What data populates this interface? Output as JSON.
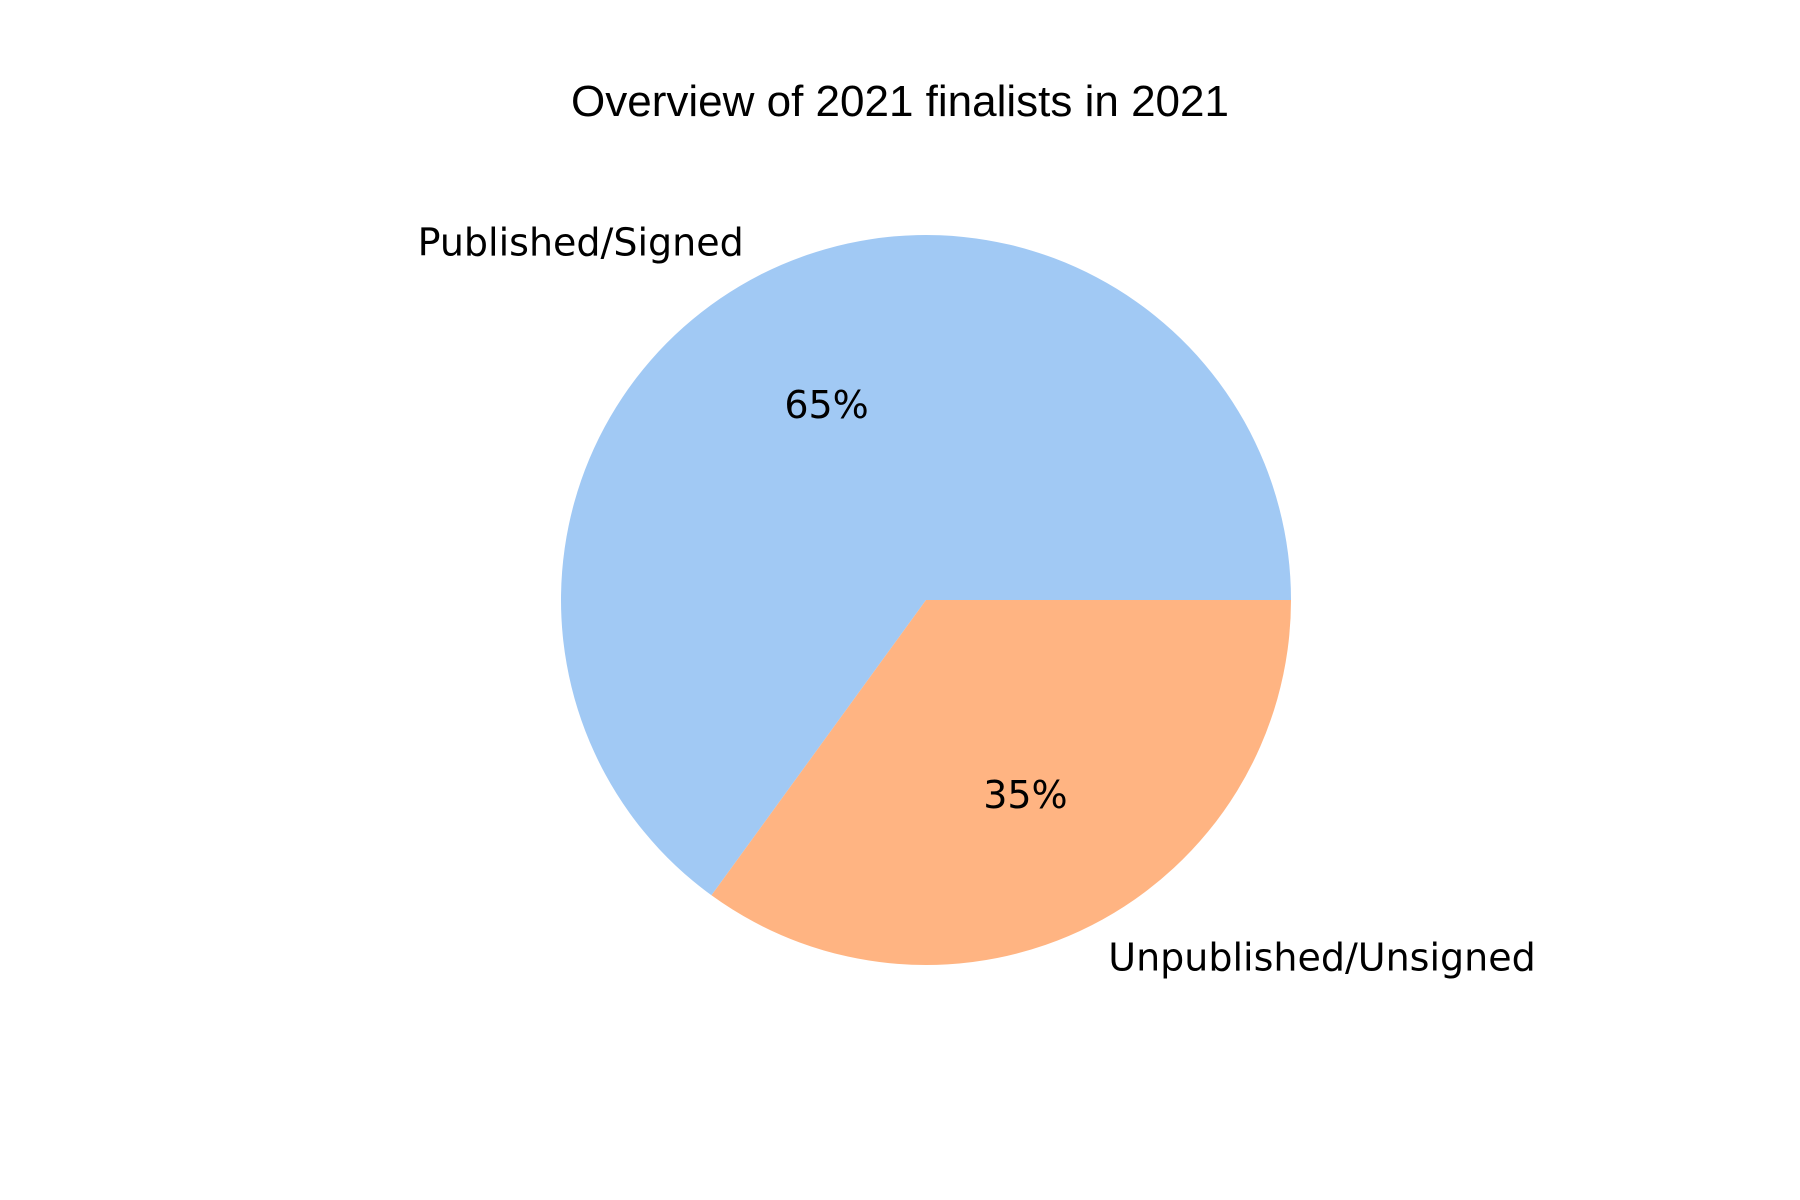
{
  "chart_data": {
    "type": "pie",
    "title": "Overview of 2021 finalists in 2021",
    "slices": [
      {
        "label": "Published/Signed",
        "value": 65,
        "pct_label": "65%",
        "color": "#a1c9f4"
      },
      {
        "label": "Unpublished/Unsigned",
        "value": 35,
        "pct_label": "35%",
        "color": "#ffb482"
      }
    ],
    "start_angle_deg": 0,
    "direction": "counterclockwise",
    "legend": "none"
  }
}
